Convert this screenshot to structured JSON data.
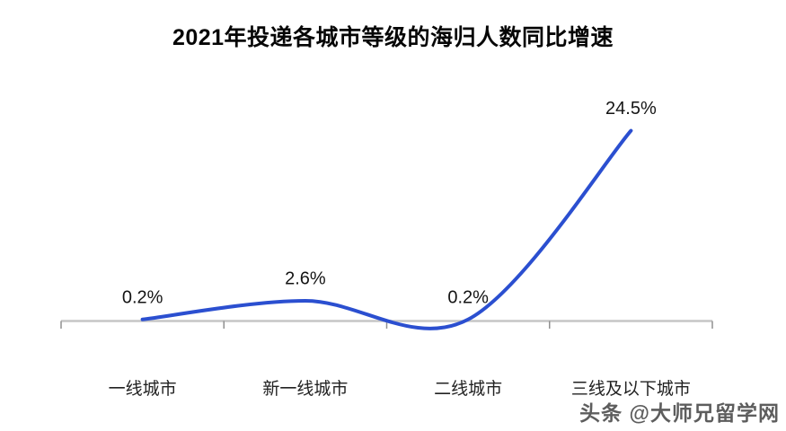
{
  "title": "2021年投递各城市等级的海归人数同比增速",
  "watermark": "头条 @大师兄留学网",
  "colors": {
    "line": "#2B4FD0",
    "axis": "#C6C6C6",
    "tick": "#909090",
    "title_text": "#060606",
    "value_label_text": "#141414",
    "category_label_text": "#222222"
  },
  "chart_data": {
    "type": "line",
    "title": "2021年投递各城市等级的海归人数同比增速",
    "categories": [
      "一线城市",
      "新一线城市",
      "二线城市",
      "三线及以下城市"
    ],
    "values": [
      0.2,
      2.6,
      0.2,
      24.5
    ],
    "value_labels": [
      "0.2%",
      "2.6%",
      "0.2%",
      "24.5%"
    ],
    "xlabel": "",
    "ylabel": "",
    "ylim": [
      0,
      25
    ],
    "grid": false,
    "legend": "none",
    "smooth": true,
    "y_axis_ticks": "none",
    "baseline": "x-axis with downward tick marks at category boundaries"
  }
}
